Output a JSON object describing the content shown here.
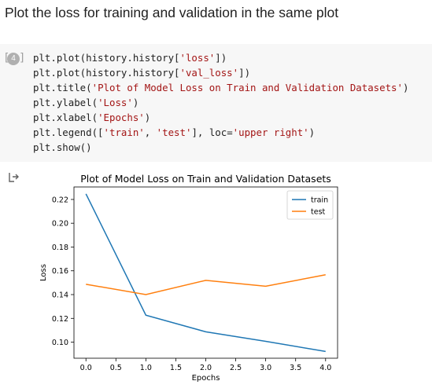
{
  "text_cell": {
    "heading": "Plot the loss for training and validation in the same plot"
  },
  "code_cell": {
    "run_number": "4",
    "bracket_left": "[",
    "bracket_right": "]",
    "lines": [
      [
        {
          "t": "plt.plot(history.history[",
          "s": false
        },
        {
          "t": "'loss'",
          "s": true
        },
        {
          "t": "])",
          "s": false
        }
      ],
      [
        {
          "t": "plt.plot(history.history[",
          "s": false
        },
        {
          "t": "'val_loss'",
          "s": true
        },
        {
          "t": "])",
          "s": false
        }
      ],
      [
        {
          "t": "plt.title(",
          "s": false
        },
        {
          "t": "'Plot of Model Loss on Train and Validation Datasets'",
          "s": true
        },
        {
          "t": ")",
          "s": false
        }
      ],
      [
        {
          "t": "plt.ylabel(",
          "s": false
        },
        {
          "t": "'Loss'",
          "s": true
        },
        {
          "t": ")",
          "s": false
        }
      ],
      [
        {
          "t": "plt.xlabel(",
          "s": false
        },
        {
          "t": "'Epochs'",
          "s": true
        },
        {
          "t": ")",
          "s": false
        }
      ],
      [
        {
          "t": "plt.legend([",
          "s": false
        },
        {
          "t": "'train'",
          "s": true
        },
        {
          "t": ", ",
          "s": false
        },
        {
          "t": "'test'",
          "s": true
        },
        {
          "t": "], loc=",
          "s": false
        },
        {
          "t": "'upper right'",
          "s": true
        },
        {
          "t": ")",
          "s": false
        }
      ],
      [
        {
          "t": "plt.show()",
          "s": false
        }
      ]
    ]
  },
  "output": {
    "icon": "output-arrow-icon"
  },
  "chart_data": {
    "type": "line",
    "title": "Plot of Model Loss on Train and Validation Datasets",
    "xlabel": "Epochs",
    "ylabel": "Loss",
    "xlim": [
      -0.2,
      4.2
    ],
    "ylim": [
      0.0865,
      0.2305
    ],
    "xticks": [
      0.0,
      0.5,
      1.0,
      1.5,
      2.0,
      2.5,
      3.0,
      3.5,
      4.0
    ],
    "xtick_labels": [
      "0.0",
      "0.5",
      "1.0",
      "1.5",
      "2.0",
      "2.5",
      "3.0",
      "3.5",
      "4.0"
    ],
    "yticks": [
      0.1,
      0.12,
      0.14,
      0.16,
      0.18,
      0.2,
      0.22
    ],
    "ytick_labels": [
      "0.10",
      "0.12",
      "0.14",
      "0.16",
      "0.18",
      "0.20",
      "0.22"
    ],
    "x": [
      0,
      1,
      2,
      3,
      4
    ],
    "series": [
      {
        "name": "train",
        "color": "#1f77b4",
        "values": [
          0.2247,
          0.1227,
          0.1087,
          0.1007,
          0.0922
        ]
      },
      {
        "name": "test",
        "color": "#ff7f0e",
        "values": [
          0.1487,
          0.14,
          0.152,
          0.147,
          0.1567
        ]
      }
    ],
    "legend": "upper right",
    "grid": false
  }
}
